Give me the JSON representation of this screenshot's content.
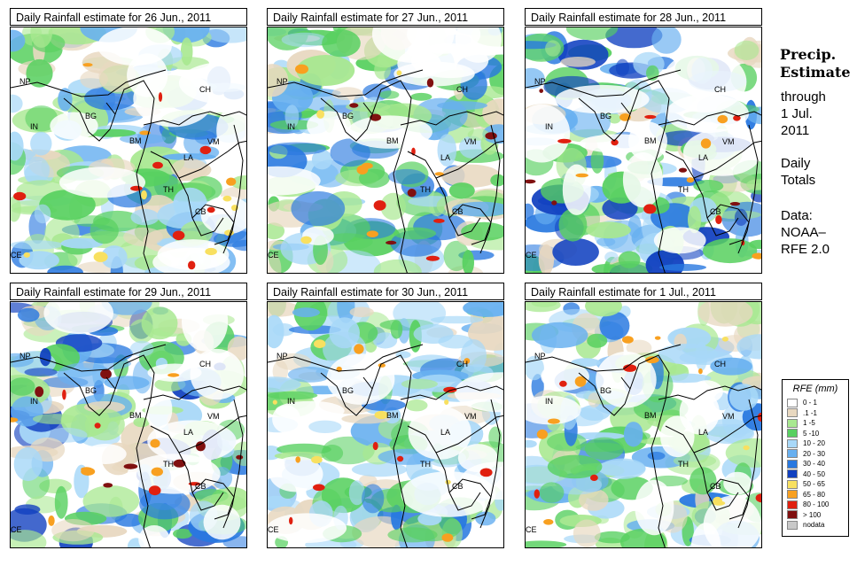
{
  "panels": [
    {
      "title": "Daily Rainfall estimate for  26 Jun., 2011"
    },
    {
      "title": "Daily Rainfall estimate for  27 Jun., 2011"
    },
    {
      "title": "Daily Rainfall estimate for  28 Jun., 2011"
    },
    {
      "title": "Daily Rainfall estimate for  29 Jun., 2011"
    },
    {
      "title": "Daily Rainfall estimate for  30 Jun., 2011"
    },
    {
      "title": "Daily Rainfall estimate for  1 Jul., 2011"
    }
  ],
  "country_labels": {
    "np": "NP",
    "ch": "CH",
    "in": "IN",
    "bg": "BG",
    "bm": "BM",
    "vm": "VM",
    "la": "LA",
    "th": "TH",
    "cb": "CB",
    "ce": "CE"
  },
  "side": {
    "title_line1": "Precip.",
    "title_line2": "Estimate",
    "through": "through",
    "date_line1": "1 Jul.",
    "date_line2": "2011",
    "daily_line1": "Daily",
    "daily_line2": "Totals",
    "data_line1": "Data:",
    "data_line2": "NOAA–",
    "data_line3": "RFE 2.0"
  },
  "legend": {
    "title": "RFE (mm)",
    "items": [
      {
        "label": "0 - 1",
        "color": "#ffffff"
      },
      {
        "label": ".1 -1",
        "color": "#e8d8c0"
      },
      {
        "label": "1 -5",
        "color": "#a8e890"
      },
      {
        "label": "5 -10",
        "color": "#58d060"
      },
      {
        "label": "10 - 20",
        "color": "#a8d8f8"
      },
      {
        "label": "20 - 30",
        "color": "#68b0f0"
      },
      {
        "label": "30 - 40",
        "color": "#2878e0"
      },
      {
        "label": "40 - 50",
        "color": "#1040c0"
      },
      {
        "label": "50 - 65",
        "color": "#f8e060"
      },
      {
        "label": "65 - 80",
        "color": "#f8a020"
      },
      {
        "label": "80 - 100",
        "color": "#e02010"
      },
      {
        "label": "> 100",
        "color": "#801010"
      },
      {
        "label": "nodata",
        "color": "#c8c8c8"
      }
    ]
  }
}
